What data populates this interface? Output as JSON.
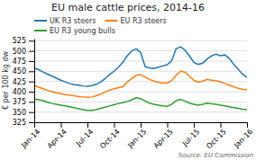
{
  "chart_data": {
    "type": "line",
    "title": "EU male cattle prices, 2014-16",
    "ylabel": "€ per 100 kg dw",
    "annotations": [
      "Source: EU Commission"
    ],
    "categories": [
      "Jan-14",
      null,
      null,
      null,
      null,
      null,
      "Apr-14",
      null,
      null,
      null,
      null,
      null,
      "Jul-14",
      null,
      null,
      null,
      null,
      null,
      "Oct-14",
      null,
      null,
      null,
      null,
      null,
      "Jan-15",
      null,
      null,
      null,
      null,
      null,
      "Apr-15",
      null,
      null,
      null,
      null,
      null,
      "Jul-15",
      null,
      null,
      null,
      null,
      null,
      "Oct-15",
      null,
      null,
      null,
      null,
      null,
      "Jan-16"
    ],
    "series": [
      {
        "name": "UK R3 steers",
        "values": [
          458,
          454,
          448,
          443,
          438,
          433,
          428,
          424,
          420,
          417,
          416,
          414,
          413,
          415,
          418,
          424,
          432,
          442,
          450,
          460,
          472,
          488,
          500,
          505,
          496,
          462,
          458,
          457,
          460,
          463,
          466,
          476,
          505,
          510,
          502,
          488,
          472,
          467,
          470,
          480,
          488,
          492,
          488,
          490,
          482,
          467,
          455,
          443,
          435
        ]
      },
      {
        "name": "EU R3 steers",
        "values": [
          415,
          411,
          407,
          403,
          400,
          397,
          395,
          393,
          391,
          390,
          388,
          387,
          386,
          387,
          390,
          394,
          399,
          404,
          407,
          410,
          412,
          424,
          432,
          440,
          442,
          436,
          430,
          426,
          423,
          421,
          421,
          427,
          440,
          450,
          448,
          438,
          428,
          423,
          426,
          430,
          428,
          427,
          424,
          420,
          416,
          412,
          408,
          406,
          405
        ]
      },
      {
        "name": "EU R3 young bulls",
        "values": [
          382,
          380,
          378,
          374,
          371,
          369,
          367,
          365,
          363,
          361,
          358,
          356,
          354,
          354,
          356,
          359,
          362,
          365,
          368,
          371,
          373,
          376,
          380,
          385,
          383,
          377,
          372,
          369,
          367,
          365,
          364,
          369,
          378,
          381,
          377,
          372,
          369,
          367,
          369,
          372,
          370,
          369,
          367,
          365,
          363,
          361,
          359,
          357,
          356
        ]
      }
    ],
    "ylim": [
      325,
      530
    ],
    "yticks": [
      325,
      350,
      375,
      400,
      425,
      450,
      475,
      500,
      525
    ],
    "grid": true,
    "legend": "top"
  }
}
